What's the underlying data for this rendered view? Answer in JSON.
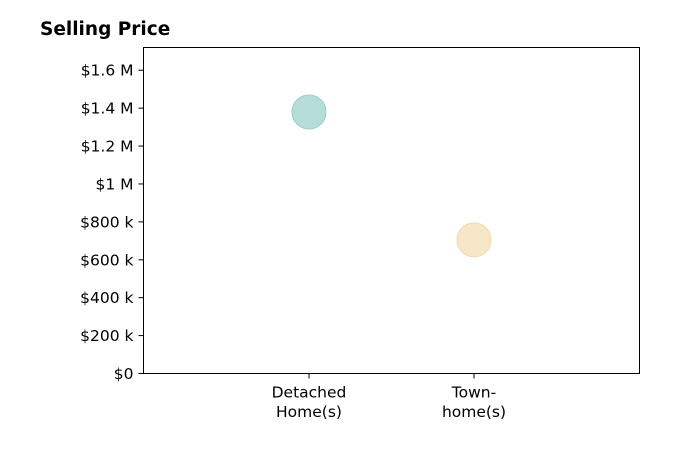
{
  "chart_data": {
    "type": "scatter",
    "title": "Selling Price",
    "xlabel": "",
    "ylabel": "",
    "categories": [
      [
        "Detached",
        "Home(s)"
      ],
      [
        "Town-",
        "home(s)"
      ]
    ],
    "ylim": [
      0,
      1720000
    ],
    "yticks": [
      0,
      200000,
      400000,
      600000,
      800000,
      1000000,
      1200000,
      1400000,
      1600000
    ],
    "ytick_labels": [
      "$0",
      "$200 k",
      "$400 k",
      "$600 k",
      "$800 k",
      "$1 M",
      "$1.2 M",
      "$1.4 M",
      "$1.6 M"
    ],
    "series": [
      {
        "category_index": 0,
        "values": [
          1380000
        ],
        "color": "#b5ded9",
        "stroke": "#96cfc7"
      },
      {
        "category_index": 1,
        "values": [
          705000
        ],
        "color": "#f7e7c9",
        "stroke": "#efd9b0"
      }
    ],
    "grid": false,
    "legend": "none"
  }
}
